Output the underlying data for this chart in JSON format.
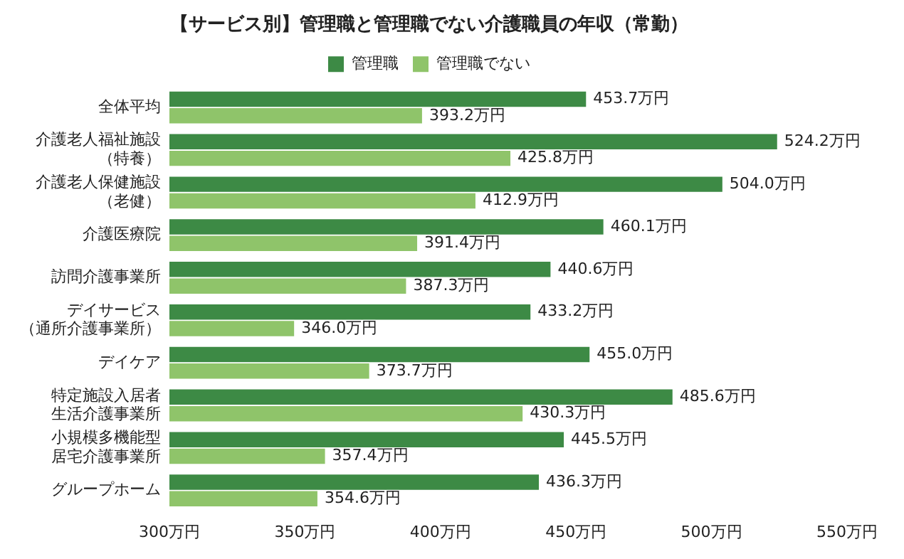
{
  "chart_data": {
    "type": "bar",
    "orientation": "horizontal",
    "title": "【サービス別】管理職と管理職でない介護職員の年収（常勤）",
    "categories": [
      "全体平均",
      "介護老人福祉施設（特養）",
      "介護老人保健施設（老健）",
      "介護医療院",
      "訪問介護事業所",
      "デイサービス（通所介護事業所）",
      "デイケア",
      "特定施設入居者生活介護事業所",
      "小規模多機能型居宅介護事業所",
      "グループホーム"
    ],
    "series": [
      {
        "name": "管理職",
        "color": "#3d8a45",
        "values": [
          453.7,
          524.2,
          504.0,
          460.1,
          440.6,
          433.2,
          455.0,
          485.6,
          445.5,
          436.3
        ],
        "value_labels": [
          "453.7万円",
          "524.2万円",
          "504.0万円",
          "460.1万円",
          "440.6万円",
          "433.2万円",
          "455.0万円",
          "485.6万円",
          "445.5万円",
          "436.3万円"
        ]
      },
      {
        "name": "管理職でない",
        "color": "#8fc46a",
        "values": [
          393.2,
          425.8,
          412.9,
          391.4,
          387.3,
          346.0,
          373.7,
          430.3,
          357.4,
          354.6
        ],
        "value_labels": [
          "393.2万円",
          "425.8万円",
          "412.9万円",
          "391.4万円",
          "387.3万円",
          "346.0万円",
          "373.7万円",
          "430.3万円",
          "357.4万円",
          "354.6万円"
        ]
      }
    ],
    "xlim": [
      300,
      550
    ],
    "xticks": [
      {
        "value": 300,
        "label": "300万円"
      },
      {
        "value": 350,
        "label": "350万円"
      },
      {
        "value": 400,
        "label": "400万円"
      },
      {
        "value": 450,
        "label": "450万円"
      },
      {
        "value": 500,
        "label": "500万円"
      },
      {
        "value": 550,
        "label": "550万円"
      }
    ],
    "grid": false,
    "legend": "top"
  }
}
